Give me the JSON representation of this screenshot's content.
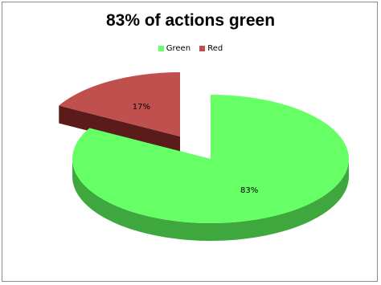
{
  "chart_data": {
    "type": "pie",
    "title": "83% of actions green",
    "legend_position": "top",
    "slices": [
      {
        "name": "Green",
        "value": 83,
        "label": "83%",
        "color": "#66ff66",
        "side_color": "#3ea83e",
        "exploded": false
      },
      {
        "name": "Red",
        "value": 17,
        "label": "17%",
        "color": "#c0504d",
        "side_color": "#5a1b1a",
        "exploded": true
      }
    ]
  }
}
